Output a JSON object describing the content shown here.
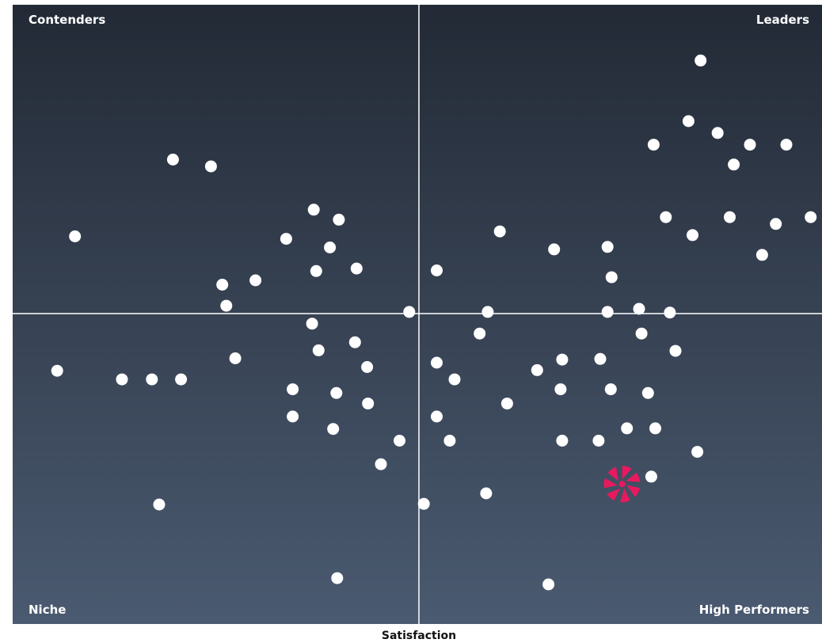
{
  "chart_data": {
    "type": "scatter",
    "xlabel": "Satisfaction",
    "ylabel": "",
    "xlim": [
      0,
      100
    ],
    "ylim": [
      0,
      100
    ],
    "grid": false,
    "quadrants": {
      "top_left": "Contenders",
      "top_right": "Leaders",
      "bottom_left": "Niche",
      "bottom_right": "High Performers"
    },
    "colors": {
      "background_top": "#232a36",
      "background_bottom": "#4a5a70",
      "point": "#ffffff",
      "highlight": "#e8195f"
    },
    "points": [
      {
        "x": 85.0,
        "y": 91.0
      },
      {
        "x": 83.5,
        "y": 81.2
      },
      {
        "x": 87.1,
        "y": 79.3
      },
      {
        "x": 79.2,
        "y": 77.4
      },
      {
        "x": 91.1,
        "y": 77.4
      },
      {
        "x": 95.6,
        "y": 77.4
      },
      {
        "x": 89.1,
        "y": 74.2
      },
      {
        "x": 80.7,
        "y": 65.7
      },
      {
        "x": 88.6,
        "y": 65.7
      },
      {
        "x": 98.6,
        "y": 65.7
      },
      {
        "x": 94.3,
        "y": 64.6
      },
      {
        "x": 84.0,
        "y": 62.8
      },
      {
        "x": 92.6,
        "y": 59.6
      },
      {
        "x": 60.2,
        "y": 63.4
      },
      {
        "x": 66.9,
        "y": 60.5
      },
      {
        "x": 73.5,
        "y": 60.9
      },
      {
        "x": 52.4,
        "y": 57.1
      },
      {
        "x": 74.0,
        "y": 56.0
      },
      {
        "x": 7.7,
        "y": 62.6
      },
      {
        "x": 19.8,
        "y": 75.0
      },
      {
        "x": 24.5,
        "y": 73.9
      },
      {
        "x": 37.2,
        "y": 66.9
      },
      {
        "x": 40.3,
        "y": 65.3
      },
      {
        "x": 33.8,
        "y": 62.2
      },
      {
        "x": 39.2,
        "y": 60.8
      },
      {
        "x": 42.5,
        "y": 57.4
      },
      {
        "x": 37.5,
        "y": 57.0
      },
      {
        "x": 30.0,
        "y": 55.5
      },
      {
        "x": 25.9,
        "y": 54.8
      },
      {
        "x": 26.4,
        "y": 51.4
      },
      {
        "x": 49.0,
        "y": 50.4
      },
      {
        "x": 58.7,
        "y": 50.4
      },
      {
        "x": 73.5,
        "y": 50.4
      },
      {
        "x": 77.4,
        "y": 50.9
      },
      {
        "x": 81.2,
        "y": 50.3
      },
      {
        "x": 37.0,
        "y": 48.5
      },
      {
        "x": 57.7,
        "y": 46.9
      },
      {
        "x": 77.7,
        "y": 46.9
      },
      {
        "x": 42.3,
        "y": 45.5
      },
      {
        "x": 37.8,
        "y": 44.2
      },
      {
        "x": 81.9,
        "y": 44.1
      },
      {
        "x": 27.5,
        "y": 42.9
      },
      {
        "x": 67.9,
        "y": 42.7
      },
      {
        "x": 72.6,
        "y": 42.8
      },
      {
        "x": 52.4,
        "y": 42.2
      },
      {
        "x": 43.8,
        "y": 41.5
      },
      {
        "x": 64.8,
        "y": 41.0
      },
      {
        "x": 5.5,
        "y": 40.9
      },
      {
        "x": 13.5,
        "y": 39.5
      },
      {
        "x": 17.2,
        "y": 39.5
      },
      {
        "x": 20.8,
        "y": 39.5
      },
      {
        "x": 54.6,
        "y": 39.5
      },
      {
        "x": 34.6,
        "y": 37.9
      },
      {
        "x": 67.7,
        "y": 37.9
      },
      {
        "x": 73.9,
        "y": 37.9
      },
      {
        "x": 40.0,
        "y": 37.3
      },
      {
        "x": 78.5,
        "y": 37.3
      },
      {
        "x": 43.9,
        "y": 35.6
      },
      {
        "x": 61.1,
        "y": 35.6
      },
      {
        "x": 34.6,
        "y": 33.5
      },
      {
        "x": 52.4,
        "y": 33.5
      },
      {
        "x": 39.6,
        "y": 31.5
      },
      {
        "x": 75.9,
        "y": 31.6
      },
      {
        "x": 79.4,
        "y": 31.6
      },
      {
        "x": 47.8,
        "y": 29.6
      },
      {
        "x": 54.0,
        "y": 29.6
      },
      {
        "x": 67.9,
        "y": 29.6
      },
      {
        "x": 72.4,
        "y": 29.6
      },
      {
        "x": 84.6,
        "y": 27.8
      },
      {
        "x": 45.5,
        "y": 25.8
      },
      {
        "x": 78.9,
        "y": 23.8
      },
      {
        "x": 58.5,
        "y": 21.1
      },
      {
        "x": 18.1,
        "y": 19.3
      },
      {
        "x": 50.8,
        "y": 19.4
      },
      {
        "x": 40.1,
        "y": 7.4
      },
      {
        "x": 66.2,
        "y": 6.4
      }
    ],
    "highlight_point": {
      "x": 75.3,
      "y": 22.6,
      "icon": "pinwheel-logo-icon"
    }
  }
}
